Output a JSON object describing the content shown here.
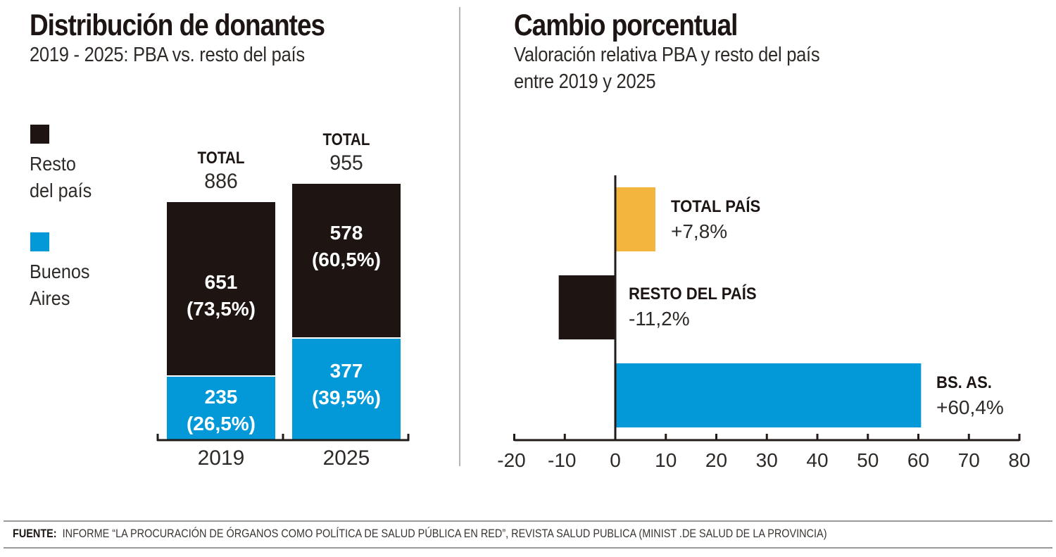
{
  "colors": {
    "resto": "#1e1513",
    "buenos_aires": "#0399d8",
    "total_pais": "#f4b53f",
    "axis": "#231b18",
    "divider": "#b5b5b5"
  },
  "left": {
    "title": "Distribución de donantes",
    "subtitle": "2019 - 2025: PBA vs. resto del país",
    "legend": [
      {
        "label_line1": "Resto",
        "label_line2": "del país",
        "color": "#1e1513"
      },
      {
        "label_line1": "Buenos",
        "label_line2": "Aires",
        "color": "#0399d8"
      }
    ]
  },
  "right": {
    "title": "Cambio porcentual",
    "subtitle_line1": "Valoración relativa PBA y resto del país",
    "subtitle_line2": "entre 2019 y 2025"
  },
  "footer": {
    "label": "FUENTE:",
    "text": "INFORME “LA PROCURACIÓN DE ÓRGANOS COMO POLÍTICA DE SALUD PÚBLICA EN RED”, REVISTA SALUD PUBLICA (MINIST .DE SALUD DE LA PROVINCIA)"
  },
  "chart_data": [
    {
      "type": "bar",
      "stacked": true,
      "title": "Distribución de donantes",
      "subtitle": "2019 - 2025: PBA vs. resto del país",
      "categories": [
        "2019",
        "2025"
      ],
      "totals": [
        886,
        955
      ],
      "total_label": "TOTAL",
      "series": [
        {
          "name": "Buenos Aires",
          "values": [
            235,
            377
          ],
          "labels": [
            "235",
            "377"
          ],
          "pct_labels": [
            "(26,5%)",
            "(39,5%)"
          ],
          "color": "#0399d8"
        },
        {
          "name": "Resto del país",
          "values": [
            651,
            578
          ],
          "labels": [
            "651",
            "578"
          ],
          "pct_labels": [
            "(73,5%)",
            "(60,5%)"
          ],
          "color": "#1e1513"
        }
      ],
      "legend_position": "left",
      "xlabel": "",
      "ylabel": "",
      "ylim": [
        0,
        955
      ]
    },
    {
      "type": "bar",
      "orientation": "horizontal",
      "title": "Cambio porcentual",
      "subtitle": "Valoración relativa PBA y resto del país entre 2019 y 2025",
      "categories": [
        "TOTAL PAÍS",
        "RESTO DEL PAÍS",
        "BS. AS."
      ],
      "values": [
        7.8,
        -11.2,
        60.4
      ],
      "value_labels": [
        "+7,8%",
        "-11,2%",
        "+60,4%"
      ],
      "colors": [
        "#f4b53f",
        "#1e1513",
        "#0399d8"
      ],
      "xlim": [
        -20,
        80
      ],
      "xticks": [
        -20,
        -10,
        0,
        10,
        20,
        30,
        40,
        50,
        60,
        70,
        80
      ],
      "xtick_labels": [
        "-20",
        "-10",
        "0",
        "10",
        "20",
        "30",
        "40",
        "50",
        "60",
        "70",
        "80"
      ],
      "grid": false
    }
  ]
}
